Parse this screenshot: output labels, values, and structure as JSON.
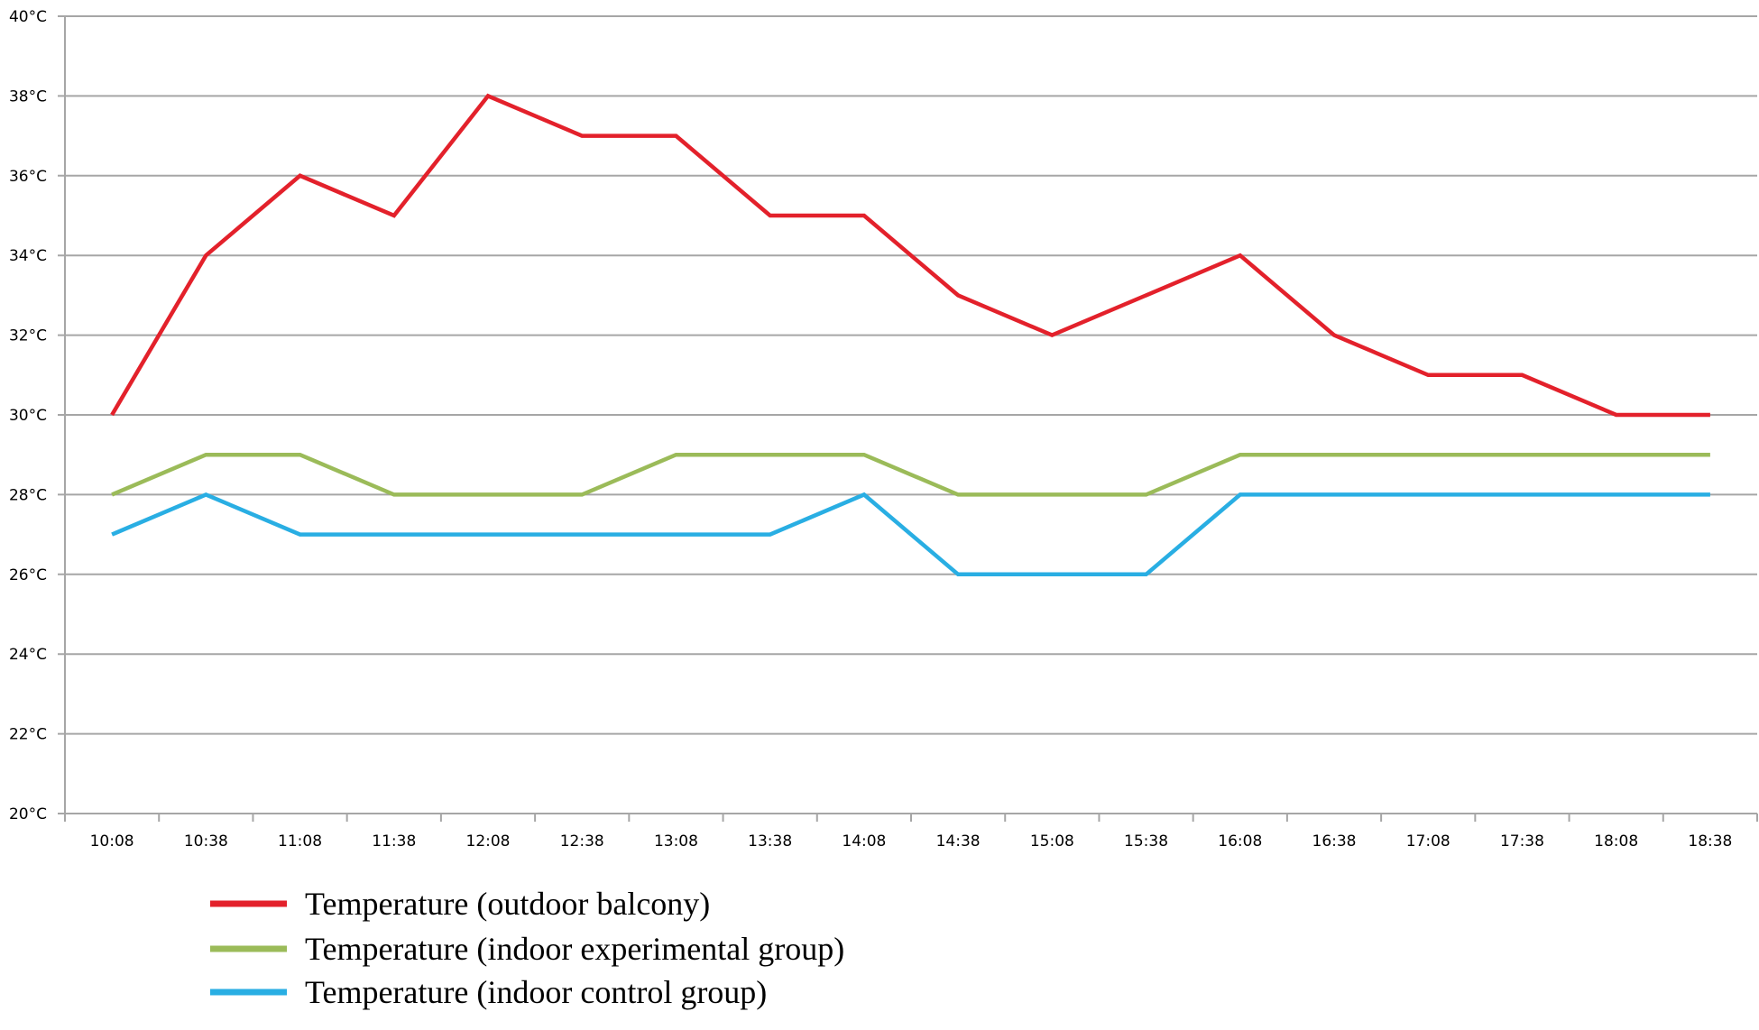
{
  "chart_data": {
    "type": "line",
    "title": "",
    "xlabel": "",
    "ylabel": "",
    "categories": [
      "10:08",
      "10:38",
      "11:08",
      "11:38",
      "12:08",
      "12:38",
      "13:08",
      "13:38",
      "14:08",
      "14:38",
      "15:08",
      "15:38",
      "16:08",
      "16:38",
      "17:08",
      "17:38",
      "18:08",
      "18:38"
    ],
    "y_ticks": [
      "20°C",
      "22°C",
      "24°C",
      "26°C",
      "28°C",
      "30°C",
      "32°C",
      "34°C",
      "36°C",
      "38°C",
      "40°C"
    ],
    "ylim": [
      20,
      40
    ],
    "grid": "horizontal",
    "legend_position": "bottom-left",
    "series": [
      {
        "name": "Temperature (outdoor balcony)",
        "color": "#e3212b",
        "values": [
          30,
          34,
          36,
          35,
          38,
          37,
          37,
          35,
          35,
          33,
          32,
          33,
          34,
          32,
          31,
          31,
          30,
          30
        ]
      },
      {
        "name": "Temperature (indoor experimental group)",
        "color": "#9bbb59",
        "values": [
          28,
          29,
          29,
          28,
          28,
          28,
          29,
          29,
          29,
          28,
          28,
          28,
          29,
          29,
          29,
          29,
          29,
          29
        ]
      },
      {
        "name": "Temperature (indoor control group)",
        "color": "#29aee3",
        "values": [
          27,
          28,
          27,
          27,
          27,
          27,
          27,
          27,
          28,
          26,
          26,
          26,
          28,
          28,
          28,
          28,
          28,
          28
        ]
      }
    ]
  }
}
